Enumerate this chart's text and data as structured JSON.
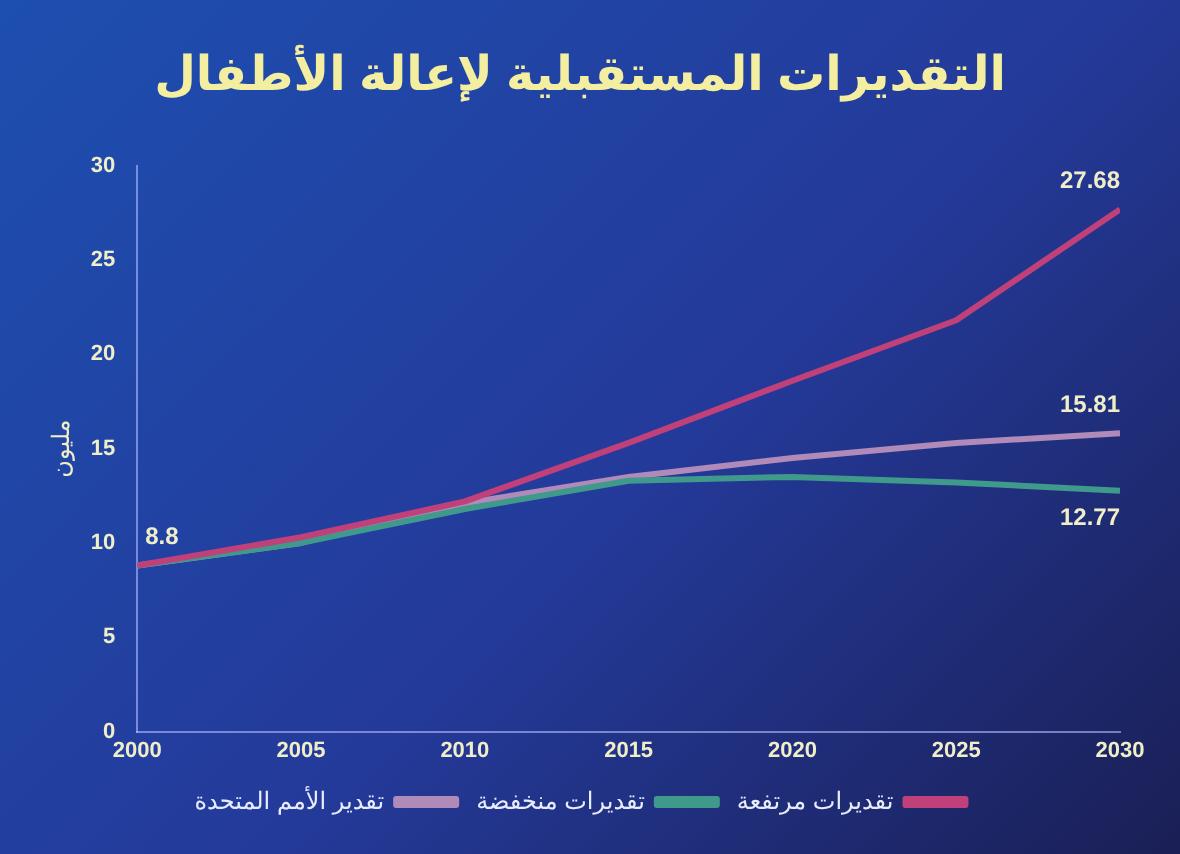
{
  "chart_data": {
    "type": "line",
    "title": "التقديرات المستقبلية لإعالة الأطفال",
    "ylabel": "مليون",
    "x": [
      2000,
      2005,
      2010,
      2015,
      2020,
      2025,
      2030
    ],
    "xlim": [
      2000,
      2030
    ],
    "xticks": [
      2000,
      2005,
      2010,
      2015,
      2020,
      2025,
      2030
    ],
    "ylim": [
      0,
      30
    ],
    "yticks": [
      0,
      5,
      10,
      15,
      20,
      25,
      30
    ],
    "grid": false,
    "legend": "bottom",
    "marker": "none",
    "line_style": "solid",
    "series": [
      {
        "name": "تقديرات مرتفعة",
        "color": "#c0407a",
        "values": [
          8.8,
          10.3,
          12.2,
          15.3,
          18.6,
          21.8,
          27.68
        ],
        "value_labels": [
          "8.8",
          null,
          null,
          null,
          null,
          null,
          "27.68"
        ]
      },
      {
        "name": "تقديرات منخفضة",
        "color": "#3f9a8c",
        "values": [
          8.8,
          10,
          11.8,
          13.3,
          13.5,
          13.2,
          12.77
        ],
        "value_labels": [
          null,
          null,
          null,
          null,
          null,
          null,
          "12.77"
        ]
      },
      {
        "name": "تقدير الأمم المتحدة",
        "color": "#b08ab8",
        "values": [
          8.8,
          10,
          12.1,
          13.5,
          14.5,
          15.3,
          15.81
        ],
        "value_labels": [
          null,
          null,
          null,
          null,
          null,
          null,
          "15.81"
        ]
      }
    ]
  }
}
